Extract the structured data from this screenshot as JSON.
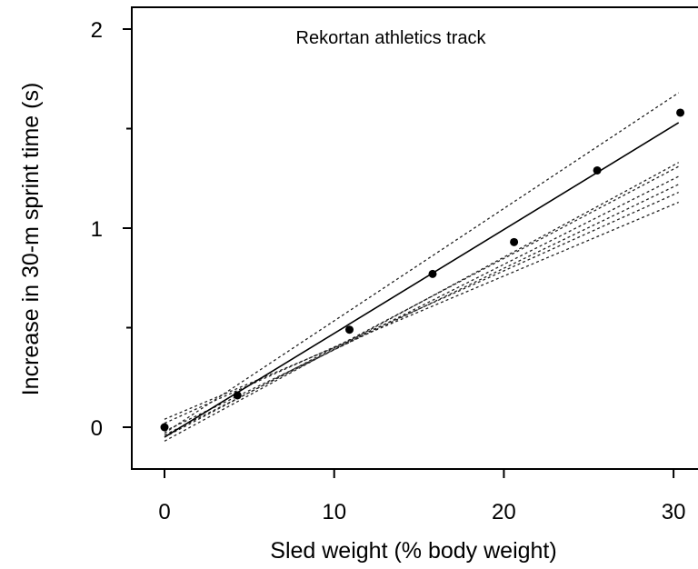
{
  "chart_data": {
    "type": "scatter",
    "title": "Rekortan athletics track",
    "xlabel": "Sled weight (% body weight)",
    "ylabel": "Increase in 30-m sprint time (s)",
    "xlim": [
      -2,
      31
    ],
    "ylim": [
      -0.2,
      2.1
    ],
    "xticks": [
      0,
      10,
      20,
      30
    ],
    "xtick_labels": [
      "0",
      "10",
      "20",
      "30"
    ],
    "yticks": [
      0,
      1,
      2
    ],
    "ytick_labels": [
      "0",
      "1",
      "2"
    ],
    "grid": false,
    "points": {
      "x": [
        0,
        4.3,
        10.9,
        15.8,
        20.6,
        25.5,
        30.4
      ],
      "y": [
        0,
        0.16,
        0.49,
        0.77,
        0.93,
        1.29,
        1.58
      ]
    },
    "fit_line": {
      "style": "solid",
      "x": [
        0,
        30.3
      ],
      "y": [
        -0.05,
        1.53
      ]
    },
    "individual_lines": [
      {
        "style": "dotted",
        "x": [
          0,
          30.3
        ],
        "y": [
          -0.03,
          1.68
        ]
      },
      {
        "style": "dotted",
        "x": [
          0,
          30.3
        ],
        "y": [
          -0.05,
          1.31
        ]
      },
      {
        "style": "dotted",
        "x": [
          0,
          30.3
        ],
        "y": [
          -0.04,
          1.26
        ]
      },
      {
        "style": "dotted",
        "x": [
          0,
          30.3
        ],
        "y": [
          -0.02,
          1.22
        ]
      },
      {
        "style": "dotted",
        "x": [
          0,
          30.3
        ],
        "y": [
          0.02,
          1.18
        ]
      },
      {
        "style": "dotted",
        "x": [
          0,
          30.3
        ],
        "y": [
          0.04,
          1.13
        ]
      },
      {
        "style": "dotted",
        "x": [
          0,
          30.3
        ],
        "y": [
          -0.07,
          1.33
        ]
      }
    ]
  }
}
